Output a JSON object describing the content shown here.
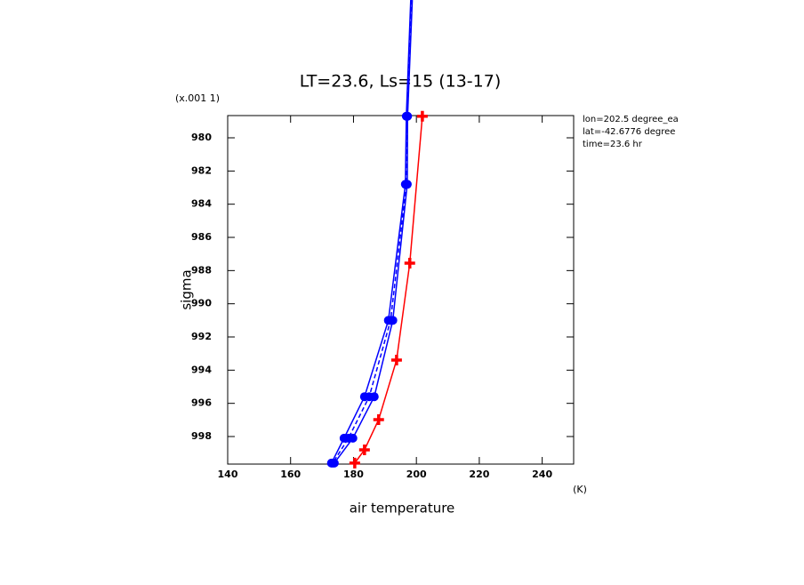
{
  "chart_data": {
    "type": "line",
    "title": "LT=23.6, Ls=15 (13-17)",
    "x_label": "air temperature",
    "y_label": "sigma",
    "y_unit_label": "(x.001 1)",
    "x_unit_label": "(K)",
    "annotations": [
      "lon=202.5 degree_ea",
      "lat=-42.6776 degree",
      "time=23.6 hr"
    ],
    "xlim": [
      140,
      250
    ],
    "xticks": [
      140,
      160,
      180,
      200,
      220,
      240
    ],
    "ylim": [
      999.66,
      978.66
    ],
    "yticks": [
      980,
      982,
      984,
      986,
      988,
      990,
      992,
      994,
      996,
      998
    ],
    "series": [
      {
        "color": "#ff0000",
        "dash": false,
        "marker": "plus",
        "x": [
          201.9,
          197.9,
          193.7,
          188.0,
          183.5,
          180.4
        ],
        "values": [
          978.7,
          987.55,
          993.39,
          996.98,
          998.8,
          999.6
        ]
      },
      {
        "color": "#0000ff",
        "dash": false,
        "marker": "circle",
        "x": [
          198.2,
          196.8,
          196.5,
          191.1,
          183.5,
          177.0,
          173.0
        ],
        "values": [
          971.7,
          978.7,
          982.8,
          991.0,
          995.6,
          998.1,
          999.6
        ]
      },
      {
        "color": "#0000ff",
        "dash": false,
        "marker": "circle",
        "x": [
          198.7,
          197.2,
          197.1,
          192.5,
          186.6,
          179.8,
          173.9
        ],
        "values": [
          971.7,
          978.7,
          982.8,
          991.0,
          995.6,
          998.1,
          999.6
        ]
      },
      {
        "color": "#0000ff",
        "dash": true,
        "marker": "circle",
        "x": [
          198.4,
          197.0,
          196.8,
          191.8,
          185.0,
          178.4,
          173.4
        ],
        "values": [
          971.7,
          978.7,
          982.8,
          991.0,
          995.6,
          998.1,
          999.6
        ]
      }
    ]
  }
}
